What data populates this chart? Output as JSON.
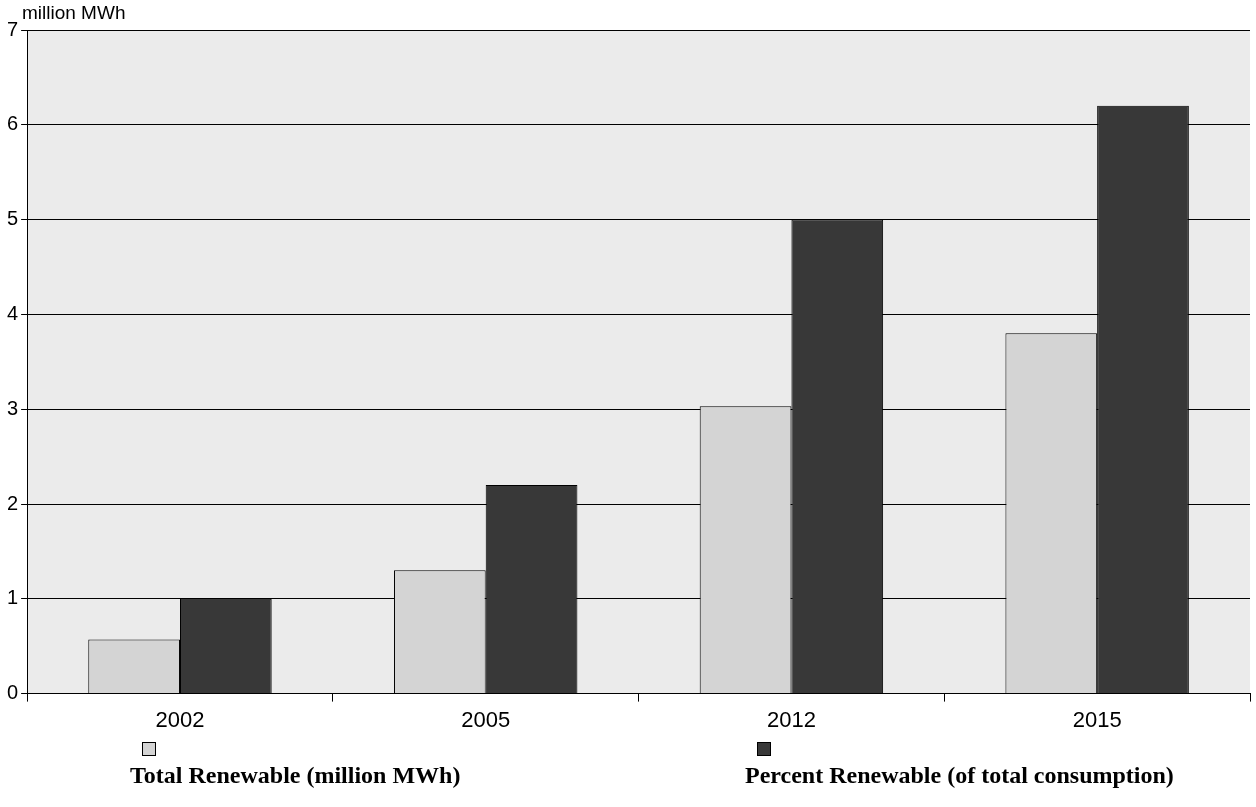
{
  "chart_data": {
    "type": "bar",
    "ylabel": "million MWh",
    "categories": [
      "2002",
      "2005",
      "2012",
      "2015"
    ],
    "series": [
      {
        "name": "Total Renewable (million MWh)",
        "color": "#d4d4d4",
        "values": [
          0.57,
          1.3,
          3.03,
          3.8
        ]
      },
      {
        "name": "Percent Renewable (of total consumption)",
        "color": "#383838",
        "values": [
          1.0,
          2.2,
          5.0,
          6.2
        ]
      }
    ],
    "ylim": [
      0,
      7
    ],
    "yticks": [
      0,
      1,
      2,
      3,
      4,
      5,
      6,
      7
    ],
    "grid": "y",
    "legend": "bottom"
  }
}
